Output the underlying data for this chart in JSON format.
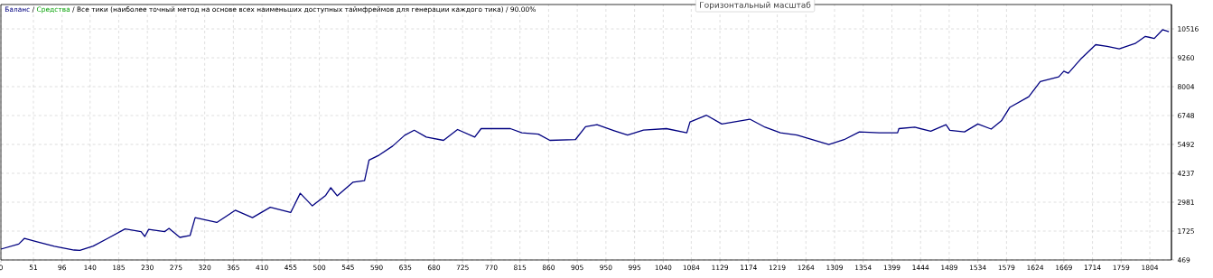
{
  "chart_data": {
    "type": "line",
    "title": "/ Все тики (наиболее точный метод на основе всех наименьших доступных таймфреймов для генерации каждого тика) / 90.00%",
    "annotations": [
      "Горизонтальный масштаб",
      "/"
    ],
    "legend": "top left",
    "grid": true,
    "marker": "none",
    "line_style": "solid",
    "xlim": [
      0,
      1838
    ],
    "ylim": [
      469,
      11577
    ],
    "xticks": [
      0,
      51,
      96,
      140,
      185,
      230,
      275,
      320,
      365,
      410,
      455,
      500,
      545,
      590,
      635,
      680,
      725,
      770,
      815,
      860,
      905,
      950,
      995,
      1040,
      1084,
      1129,
      1174,
      1219,
      1264,
      1309,
      1354,
      1399,
      1444,
      1489,
      1534,
      1579,
      1624,
      1669,
      1714,
      1759,
      1804
    ],
    "yticks": [
      469,
      1725,
      2981,
      4237,
      5492,
      6748,
      8004,
      9260,
      10516
    ],
    "series": [
      {
        "name": "Баланс",
        "color": "#000080",
        "x": [
          0,
          28,
          37,
          58,
          84,
          115,
          124,
          145,
          168,
          195,
          220,
          226,
          232,
          257,
          264,
          281,
          297,
          305,
          339,
          368,
          395,
          423,
          455,
          470,
          489,
          510,
          518,
          528,
          553,
          571,
          578,
          594,
          615,
          634,
          649,
          668,
          695,
          717,
          744,
          754,
          800,
          818,
          844,
          862,
          902,
          918,
          936,
          963,
          984,
          1009,
          1045,
          1077,
          1082,
          1108,
          1132,
          1176,
          1200,
          1224,
          1250,
          1300,
          1324,
          1348,
          1379,
          1408,
          1410,
          1435,
          1460,
          1484,
          1490,
          1513,
          1534,
          1555,
          1571,
          1584,
          1614,
          1632,
          1661,
          1669,
          1676,
          1695,
          1719,
          1737,
          1756,
          1781,
          1797,
          1811,
          1824,
          1834
        ],
        "values": [
          940,
          1160,
          1410,
          1250,
          1060,
          900,
          890,
          1070,
          1410,
          1820,
          1700,
          1490,
          1800,
          1700,
          1840,
          1450,
          1530,
          2310,
          2100,
          2630,
          2310,
          2760,
          2530,
          3370,
          2820,
          3280,
          3610,
          3260,
          3850,
          3920,
          4810,
          5030,
          5420,
          5890,
          6110,
          5810,
          5670,
          6140,
          5810,
          6180,
          6180,
          6000,
          5940,
          5670,
          5700,
          6260,
          6350,
          6090,
          5900,
          6120,
          6180,
          6000,
          6470,
          6760,
          6380,
          6590,
          6240,
          6000,
          5900,
          5490,
          5700,
          6040,
          6000,
          6000,
          6180,
          6240,
          6070,
          6350,
          6110,
          6040,
          6380,
          6160,
          6520,
          7100,
          7570,
          8230,
          8430,
          8680,
          8590,
          9190,
          9830,
          9760,
          9650,
          9880,
          10190,
          10100,
          10480,
          10390
        ]
      },
      {
        "name": "Средства",
        "color": "#00a000",
        "values": [
          null
        ]
      }
    ]
  }
}
